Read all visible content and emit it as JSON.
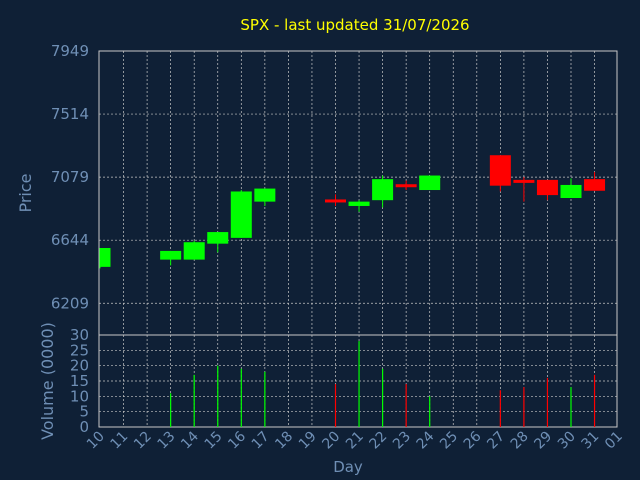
{
  "colors": {
    "background": "#0f2036",
    "title": "#ffff00",
    "axis_text": "#6f8fb5",
    "grid": "#c8c8c8",
    "frame": "#c8c8c8",
    "up": "#00ff00",
    "down": "#ff0000"
  },
  "chart_data": {
    "type": "candlestick",
    "title": "SPX - last updated 31/07/2026",
    "price_panel": {
      "ylabel": "Price",
      "yticks": [
        6209,
        6644,
        7079,
        7514,
        7949
      ],
      "ylim": [
        5990,
        7949
      ],
      "grid": true
    },
    "volume_panel": {
      "ylabel": "Volume (0000)",
      "yticks": [
        0,
        5,
        10,
        15,
        20,
        25,
        30
      ],
      "ylim": [
        0,
        30
      ],
      "grid": true
    },
    "xlabel": "Day",
    "x_ticks": [
      "10",
      "11",
      "12",
      "13",
      "14",
      "15",
      "16",
      "17",
      "18",
      "19",
      "20",
      "21",
      "22",
      "23",
      "24",
      "25",
      "26",
      "27",
      "28",
      "29",
      "30",
      "31",
      "01"
    ],
    "candles": [
      {
        "day": "10",
        "open": 6460,
        "high": 6590,
        "low": 6450,
        "close": 6590,
        "volume": 0
      },
      {
        "day": "13",
        "open": 6510,
        "high": 6570,
        "low": 6470,
        "close": 6570,
        "volume": 11
      },
      {
        "day": "14",
        "open": 6510,
        "high": 6640,
        "low": 6510,
        "close": 6630,
        "volume": 17
      },
      {
        "day": "15",
        "open": 6620,
        "high": 6700,
        "low": 6560,
        "close": 6700,
        "volume": 20
      },
      {
        "day": "16",
        "open": 6660,
        "high": 6990,
        "low": 6660,
        "close": 6980,
        "volume": 19
      },
      {
        "day": "17",
        "open": 6910,
        "high": 7000,
        "low": 6880,
        "close": 7000,
        "volume": 18
      },
      {
        "day": "20",
        "open": 6925,
        "high": 6960,
        "low": 6880,
        "close": 6905,
        "volume": 14
      },
      {
        "day": "21",
        "open": 6880,
        "high": 6920,
        "low": 6840,
        "close": 6910,
        "volume": 28
      },
      {
        "day": "22",
        "open": 6920,
        "high": 7090,
        "low": 6870,
        "close": 7065,
        "volume": 19
      },
      {
        "day": "23",
        "open": 7030,
        "high": 7055,
        "low": 6990,
        "close": 7010,
        "volume": 14
      },
      {
        "day": "24",
        "open": 6990,
        "high": 7090,
        "low": 6990,
        "close": 7090,
        "volume": 10
      },
      {
        "day": "27",
        "open": 7230,
        "high": 7230,
        "low": 6980,
        "close": 7020,
        "volume": 12
      },
      {
        "day": "28",
        "open": 7060,
        "high": 7080,
        "low": 6910,
        "close": 7040,
        "volume": 13
      },
      {
        "day": "29",
        "open": 7060,
        "high": 7060,
        "low": 6920,
        "close": 6955,
        "volume": 16
      },
      {
        "day": "30",
        "open": 6935,
        "high": 7070,
        "low": 6935,
        "close": 7025,
        "volume": 13
      },
      {
        "day": "31",
        "open": 7065,
        "high": 7115,
        "low": 6985,
        "close": 6985,
        "volume": 17
      }
    ]
  }
}
